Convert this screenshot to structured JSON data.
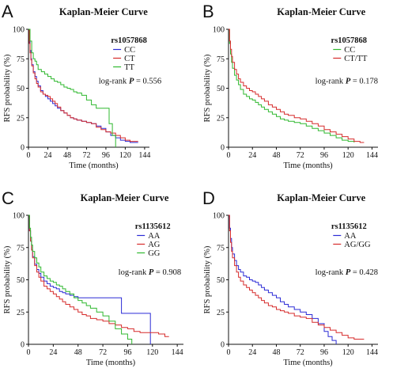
{
  "chart_data": [
    {
      "panel": "A",
      "type": "line",
      "title": "Kaplan-Meier Curve",
      "xlabel": "Time (months)",
      "ylabel": "RFS probability (%)",
      "xlim": [
        0,
        150
      ],
      "ylim": [
        0,
        100
      ],
      "xticks": [
        0,
        24,
        48,
        72,
        96,
        120,
        144
      ],
      "yticks": [
        0,
        25,
        50,
        75,
        100
      ],
      "legend_title": "rs1057868",
      "legend_position": "top-right",
      "logrank_label": "log-rank",
      "p_label": "P",
      "p_value": "= 0.556",
      "series": [
        {
          "name": "CC",
          "color": "#2b2bd6",
          "x": [
            0,
            1,
            2,
            3,
            4,
            6,
            8,
            10,
            12,
            15,
            18,
            21,
            24,
            27,
            30,
            33,
            36,
            40,
            44,
            48,
            52,
            56,
            60,
            66,
            72,
            78,
            84,
            90,
            96,
            102,
            108,
            114,
            120,
            126,
            132,
            136
          ],
          "y": [
            100,
            90,
            82,
            75,
            70,
            64,
            60,
            56,
            52,
            48,
            45,
            43,
            41,
            39,
            37,
            35,
            33,
            31,
            29,
            27,
            25,
            24,
            23,
            22,
            21,
            20,
            18,
            16,
            13,
            10,
            8,
            6,
            5,
            4,
            4,
            4
          ]
        },
        {
          "name": "CT",
          "color": "#d62b2b",
          "x": [
            0,
            1,
            2,
            3,
            4,
            6,
            8,
            10,
            12,
            15,
            18,
            21,
            24,
            27,
            30,
            33,
            36,
            40,
            44,
            48,
            52,
            56,
            60,
            66,
            72,
            78,
            84,
            90,
            96,
            102,
            108,
            114,
            120,
            126,
            132,
            136
          ],
          "y": [
            100,
            88,
            80,
            74,
            69,
            63,
            58,
            54,
            51,
            47,
            45,
            44,
            43,
            41,
            39,
            37,
            34,
            31,
            29,
            27,
            25,
            24,
            23,
            22,
            21,
            20,
            17,
            15,
            13,
            12,
            10,
            8,
            6,
            5,
            5,
            5
          ]
        },
        {
          "name": "TT",
          "color": "#2fb82f",
          "x": [
            0,
            2,
            4,
            6,
            8,
            10,
            12,
            16,
            20,
            24,
            28,
            32,
            36,
            40,
            44,
            48,
            52,
            56,
            60,
            66,
            72,
            78,
            84,
            90,
            96,
            100,
            104,
            108
          ],
          "y": [
            100,
            90,
            80,
            75,
            73,
            70,
            66,
            64,
            62,
            60,
            58,
            56,
            55,
            53,
            51,
            50,
            49,
            47,
            46,
            44,
            40,
            36,
            33,
            33,
            33,
            20,
            10,
            0
          ]
        }
      ]
    },
    {
      "panel": "B",
      "type": "line",
      "title": "Kaplan-Meier Curve",
      "xlabel": "Time (months)",
      "ylabel": "RFS probability (%)",
      "xlim": [
        0,
        150
      ],
      "ylim": [
        0,
        100
      ],
      "xticks": [
        0,
        24,
        48,
        72,
        96,
        120,
        144
      ],
      "yticks": [
        0,
        25,
        50,
        75,
        100
      ],
      "legend_title": "rs1057868",
      "legend_position": "top-right",
      "logrank_label": "log-rank",
      "p_label": "P",
      "p_value": "= 0.178",
      "series": [
        {
          "name": "CC",
          "color": "#2fb82f",
          "x": [
            0,
            1,
            2,
            3,
            4,
            6,
            8,
            10,
            12,
            15,
            18,
            21,
            24,
            27,
            30,
            33,
            36,
            40,
            44,
            48,
            52,
            56,
            60,
            66,
            72,
            78,
            84,
            90,
            96,
            102,
            108,
            114,
            120,
            126
          ],
          "y": [
            100,
            88,
            79,
            72,
            67,
            61,
            57,
            53,
            49,
            45,
            43,
            41,
            40,
            38,
            36,
            34,
            32,
            30,
            28,
            26,
            24,
            23,
            22,
            21,
            20,
            18,
            16,
            14,
            12,
            10,
            8,
            6,
            5,
            4
          ]
        },
        {
          "name": "CT/TT",
          "color": "#d62b2b",
          "x": [
            0,
            1,
            2,
            3,
            4,
            6,
            8,
            10,
            12,
            15,
            18,
            21,
            24,
            27,
            30,
            33,
            36,
            40,
            44,
            48,
            52,
            56,
            60,
            66,
            72,
            78,
            84,
            90,
            96,
            102,
            108,
            114,
            120,
            126,
            132,
            136
          ],
          "y": [
            100,
            90,
            83,
            77,
            72,
            66,
            62,
            58,
            55,
            52,
            50,
            48,
            47,
            45,
            43,
            41,
            39,
            36,
            34,
            32,
            30,
            28,
            27,
            25,
            24,
            22,
            20,
            18,
            15,
            13,
            11,
            9,
            7,
            5,
            4,
            4
          ]
        }
      ]
    },
    {
      "panel": "C",
      "type": "line",
      "title": "Kaplan-Meier Curve",
      "xlabel": "Time (months)",
      "ylabel": "RFS probability (%)",
      "xlim": [
        0,
        150
      ],
      "ylim": [
        0,
        100
      ],
      "xticks": [
        0,
        24,
        48,
        72,
        96,
        120,
        144
      ],
      "yticks": [
        0,
        25,
        50,
        75,
        100
      ],
      "legend_title": "rs1135612",
      "legend_position": "top-right",
      "logrank_label": "log-rank",
      "p_label": "P",
      "p_value": "= 0.908",
      "series": [
        {
          "name": "AA",
          "color": "#2b2bd6",
          "x": [
            0,
            1,
            2,
            3,
            4,
            6,
            8,
            10,
            12,
            15,
            18,
            21,
            24,
            27,
            30,
            33,
            36,
            40,
            44,
            48,
            52,
            56,
            60,
            66,
            72,
            78,
            84,
            90,
            96,
            102,
            108,
            114,
            116,
            118
          ],
          "y": [
            100,
            88,
            80,
            73,
            68,
            62,
            58,
            55,
            52,
            49,
            47,
            45,
            44,
            43,
            41,
            40,
            39,
            38,
            37,
            36,
            36,
            36,
            36,
            36,
            36,
            36,
            36,
            24,
            24,
            24,
            24,
            24,
            24,
            0
          ]
        },
        {
          "name": "AG",
          "color": "#d62b2b",
          "x": [
            0,
            1,
            2,
            3,
            4,
            6,
            8,
            10,
            12,
            15,
            18,
            21,
            24,
            27,
            30,
            33,
            36,
            40,
            44,
            48,
            52,
            56,
            60,
            66,
            72,
            78,
            84,
            90,
            96,
            102,
            108,
            114,
            120,
            126,
            132,
            136
          ],
          "y": [
            100,
            88,
            80,
            73,
            67,
            61,
            56,
            52,
            49,
            45,
            43,
            41,
            39,
            37,
            35,
            33,
            31,
            29,
            27,
            25,
            23,
            22,
            20,
            19,
            18,
            16,
            15,
            13,
            12,
            10,
            9,
            9,
            9,
            8,
            6,
            6
          ]
        },
        {
          "name": "GG",
          "color": "#2fb82f",
          "x": [
            0,
            1,
            2,
            3,
            4,
            6,
            8,
            10,
            12,
            15,
            18,
            21,
            24,
            27,
            30,
            33,
            36,
            40,
            44,
            48,
            52,
            56,
            60,
            66,
            72,
            78,
            84,
            90,
            96,
            100
          ],
          "y": [
            100,
            90,
            83,
            77,
            72,
            67,
            63,
            60,
            56,
            53,
            51,
            49,
            48,
            46,
            45,
            43,
            41,
            39,
            36,
            34,
            32,
            30,
            28,
            25,
            22,
            18,
            12,
            8,
            4,
            0
          ]
        }
      ]
    },
    {
      "panel": "D",
      "type": "line",
      "title": "Kaplan-Meier Curve",
      "xlabel": "Time (months)",
      "ylabel": "RFS probability (%)",
      "xlim": [
        0,
        150
      ],
      "ylim": [
        0,
        100
      ],
      "xticks": [
        0,
        24,
        48,
        72,
        96,
        120,
        144
      ],
      "yticks": [
        0,
        25,
        50,
        75,
        100
      ],
      "legend_title": "rs1135612",
      "legend_position": "top-right",
      "logrank_label": "log-rank",
      "p_label": "P",
      "p_value": "= 0.428",
      "series": [
        {
          "name": "AA",
          "color": "#2b2bd6",
          "x": [
            0,
            1,
            2,
            3,
            4,
            6,
            8,
            10,
            12,
            15,
            18,
            21,
            24,
            27,
            30,
            33,
            36,
            40,
            44,
            48,
            52,
            56,
            60,
            66,
            72,
            78,
            84,
            90,
            96,
            100,
            104,
            108
          ],
          "y": [
            100,
            90,
            82,
            75,
            70,
            65,
            61,
            58,
            56,
            53,
            52,
            50,
            49,
            48,
            46,
            44,
            42,
            40,
            38,
            36,
            33,
            31,
            29,
            27,
            25,
            23,
            20,
            16,
            10,
            6,
            3,
            0
          ]
        },
        {
          "name": "AG/GG",
          "color": "#d62b2b",
          "x": [
            0,
            1,
            2,
            3,
            4,
            6,
            8,
            10,
            12,
            15,
            18,
            21,
            24,
            27,
            30,
            33,
            36,
            40,
            44,
            48,
            52,
            56,
            60,
            66,
            72,
            78,
            84,
            90,
            96,
            102,
            108,
            114,
            120,
            126,
            132,
            136
          ],
          "y": [
            100,
            88,
            79,
            72,
            67,
            61,
            56,
            52,
            49,
            46,
            44,
            42,
            40,
            38,
            36,
            34,
            32,
            30,
            29,
            27,
            26,
            25,
            24,
            22,
            21,
            20,
            17,
            15,
            13,
            11,
            9,
            7,
            5,
            4,
            4,
            4
          ]
        }
      ]
    }
  ]
}
